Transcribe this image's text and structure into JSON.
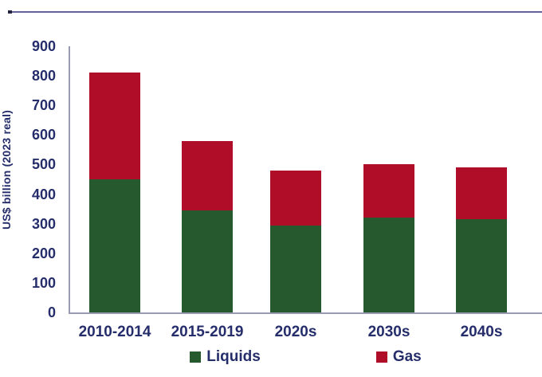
{
  "page": {
    "background": "#ffffff",
    "top_rule_color": "#63639a",
    "text_color": "#252e6b",
    "axis_color": "#9a9ab3"
  },
  "chart_data": {
    "type": "bar",
    "stacked": true,
    "title": "",
    "xlabel": "",
    "ylabel": "US$ billion (2023 real)",
    "categories": [
      "2010-2014",
      "2015-2019",
      "2020s",
      "2030s",
      "2040s"
    ],
    "series": [
      {
        "name": "Liquids",
        "color": "#27592e",
        "values": [
          450,
          345,
          295,
          320,
          315
        ]
      },
      {
        "name": "Gas",
        "color": "#b00d29",
        "values": [
          360,
          235,
          185,
          180,
          175
        ]
      }
    ],
    "totals": [
      810,
      580,
      480,
      500,
      490
    ],
    "ylim": [
      0,
      900
    ],
    "yticks": [
      0,
      100,
      200,
      300,
      400,
      500,
      600,
      700,
      800,
      900
    ],
    "grid": false,
    "legend_position": "bottom"
  }
}
